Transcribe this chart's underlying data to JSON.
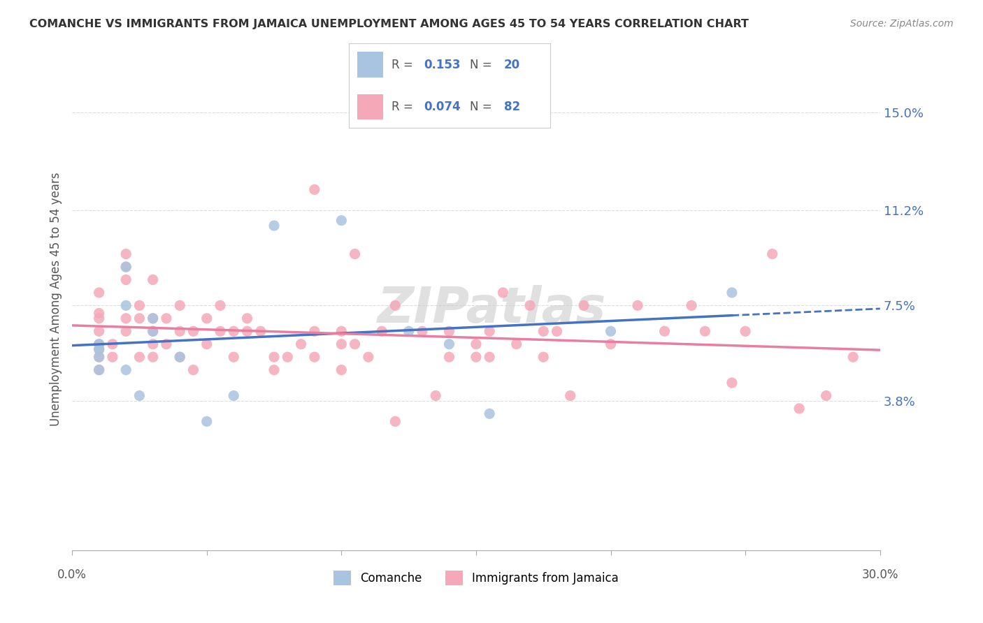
{
  "title": "COMANCHE VS IMMIGRANTS FROM JAMAICA UNEMPLOYMENT AMONG AGES 45 TO 54 YEARS CORRELATION CHART",
  "source": "Source: ZipAtlas.com",
  "ylabel": "Unemployment Among Ages 45 to 54 years",
  "xlim": [
    0.0,
    0.3
  ],
  "ylim": [
    -0.02,
    0.175
  ],
  "xticks": [
    0.0,
    0.05,
    0.1,
    0.15,
    0.2,
    0.25,
    0.3
  ],
  "ytick_values": [
    0.038,
    0.075,
    0.112,
    0.15
  ],
  "ytick_labels": [
    "3.8%",
    "7.5%",
    "11.2%",
    "15.0%"
  ],
  "background_color": "#ffffff",
  "grid_color": "#dddddd",
  "comanche_color": "#a8c4e0",
  "jamaica_color": "#f4a8b8",
  "comanche_line_color": "#4472c4",
  "jamaica_line_color": "#e87fa0",
  "R_comanche": 0.153,
  "N_comanche": 20,
  "R_jamaica": 0.074,
  "N_jamaica": 82,
  "comanche_x": [
    0.01,
    0.01,
    0.01,
    0.01,
    0.02,
    0.02,
    0.02,
    0.025,
    0.03,
    0.03,
    0.04,
    0.05,
    0.06,
    0.075,
    0.1,
    0.125,
    0.14,
    0.155,
    0.2,
    0.245
  ],
  "comanche_y": [
    0.05,
    0.055,
    0.06,
    0.058,
    0.09,
    0.075,
    0.05,
    0.04,
    0.065,
    0.07,
    0.055,
    0.03,
    0.04,
    0.106,
    0.108,
    0.065,
    0.06,
    0.033,
    0.065,
    0.08
  ],
  "jamaica_x": [
    0.01,
    0.01,
    0.01,
    0.01,
    0.01,
    0.01,
    0.01,
    0.01,
    0.015,
    0.015,
    0.02,
    0.02,
    0.02,
    0.02,
    0.02,
    0.025,
    0.025,
    0.025,
    0.03,
    0.03,
    0.03,
    0.03,
    0.03,
    0.035,
    0.035,
    0.04,
    0.04,
    0.04,
    0.045,
    0.045,
    0.05,
    0.05,
    0.055,
    0.055,
    0.06,
    0.06,
    0.065,
    0.065,
    0.07,
    0.075,
    0.075,
    0.08,
    0.085,
    0.09,
    0.09,
    0.1,
    0.1,
    0.1,
    0.105,
    0.11,
    0.115,
    0.12,
    0.13,
    0.14,
    0.14,
    0.15,
    0.155,
    0.16,
    0.17,
    0.175,
    0.18,
    0.19,
    0.2,
    0.21,
    0.22,
    0.23,
    0.245,
    0.25,
    0.26,
    0.27,
    0.28,
    0.29,
    0.09,
    0.105,
    0.12,
    0.135,
    0.15,
    0.155,
    0.165,
    0.175,
    0.185,
    0.235
  ],
  "jamaica_y": [
    0.055,
    0.05,
    0.06,
    0.07,
    0.058,
    0.065,
    0.072,
    0.08,
    0.055,
    0.06,
    0.09,
    0.095,
    0.085,
    0.07,
    0.065,
    0.07,
    0.075,
    0.055,
    0.055,
    0.065,
    0.06,
    0.07,
    0.085,
    0.06,
    0.07,
    0.055,
    0.065,
    0.075,
    0.05,
    0.065,
    0.06,
    0.07,
    0.075,
    0.065,
    0.055,
    0.065,
    0.07,
    0.065,
    0.065,
    0.055,
    0.05,
    0.055,
    0.06,
    0.065,
    0.055,
    0.05,
    0.06,
    0.065,
    0.06,
    0.055,
    0.065,
    0.075,
    0.065,
    0.055,
    0.065,
    0.055,
    0.065,
    0.08,
    0.075,
    0.055,
    0.065,
    0.075,
    0.06,
    0.075,
    0.065,
    0.075,
    0.045,
    0.065,
    0.095,
    0.035,
    0.04,
    0.055,
    0.12,
    0.095,
    0.03,
    0.04,
    0.06,
    0.055,
    0.06,
    0.065,
    0.04,
    0.065
  ]
}
